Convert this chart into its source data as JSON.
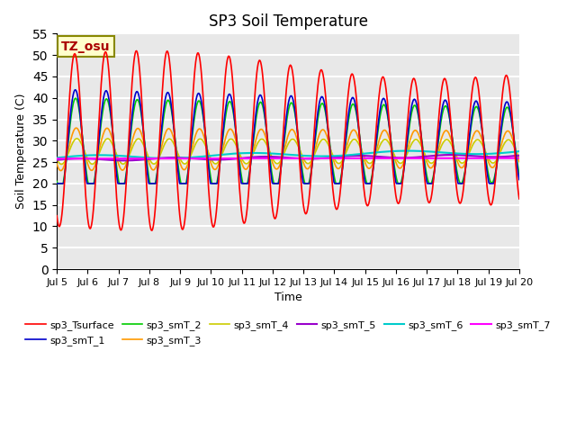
{
  "title": "SP3 Soil Temperature",
  "xlabel": "Time",
  "ylabel": "Soil Temperature (C)",
  "ylim": [
    0,
    55
  ],
  "yticks": [
    0,
    5,
    10,
    15,
    20,
    25,
    30,
    35,
    40,
    45,
    50,
    55
  ],
  "background_color": "#e8e8e8",
  "plot_bg_color": "#e8e8e8",
  "grid_color": "white",
  "tz_label": "TZ_osu",
  "tz_box_facecolor": "#ffffcc",
  "tz_box_edgecolor": "#888800",
  "tz_text_color": "#aa0000",
  "series_colors": {
    "sp3_Tsurface": "#ff0000",
    "sp3_smT_1": "#0000cc",
    "sp3_smT_2": "#00cc00",
    "sp3_smT_3": "#ff9900",
    "sp3_smT_4": "#cccc00",
    "sp3_smT_5": "#9900cc",
    "sp3_smT_6": "#00cccc",
    "sp3_smT_7": "#ff00ff"
  },
  "start_day": 5,
  "end_day": 20,
  "n_days": 15,
  "points_per_day": 48
}
